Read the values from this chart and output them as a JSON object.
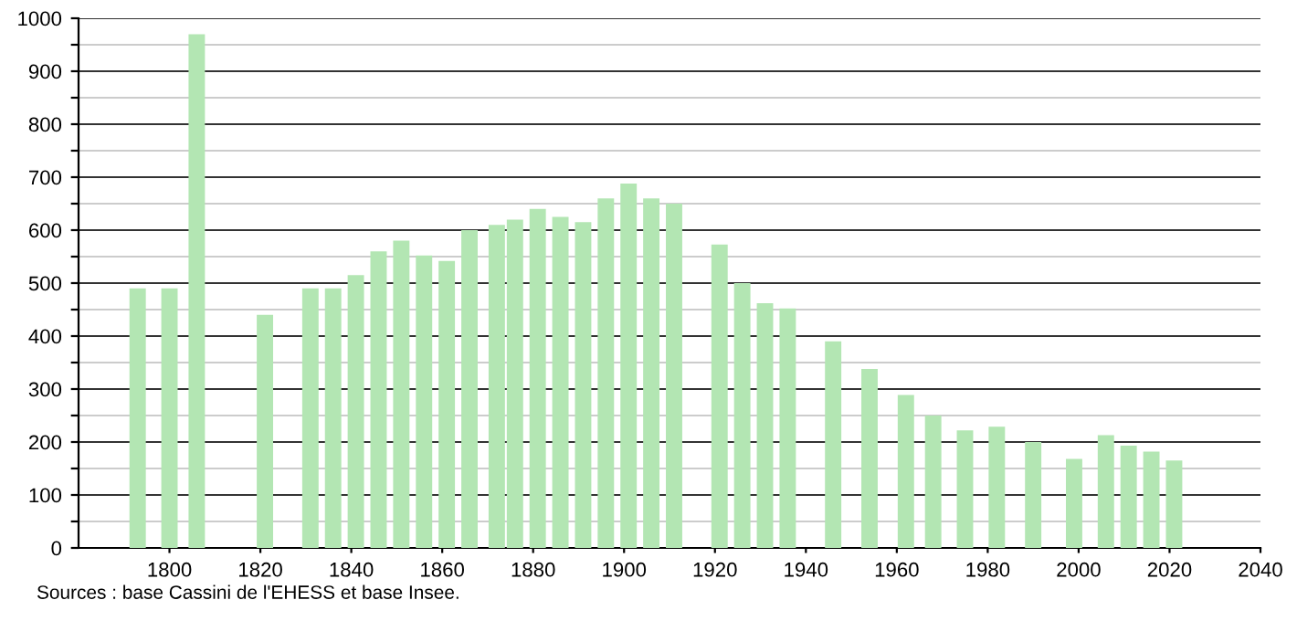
{
  "chart_data": {
    "type": "bar",
    "x": [
      1793,
      1800,
      1806,
      1821,
      1831,
      1836,
      1841,
      1846,
      1851,
      1856,
      1861,
      1866,
      1872,
      1876,
      1881,
      1886,
      1891,
      1896,
      1901,
      1906,
      1911,
      1921,
      1926,
      1931,
      1936,
      1946,
      1954,
      1962,
      1968,
      1975,
      1982,
      1990,
      1999,
      2006,
      2011,
      2016,
      2021
    ],
    "values": [
      490,
      490,
      970,
      440,
      490,
      490,
      515,
      560,
      580,
      552,
      542,
      600,
      610,
      620,
      640,
      625,
      615,
      660,
      688,
      660,
      650,
      573,
      500,
      462,
      452,
      390,
      338,
      289,
      250,
      222,
      229,
      200,
      168,
      213,
      193,
      182,
      165
    ],
    "color": "#b3e6b3",
    "xlim": [
      1780,
      2040
    ],
    "xticks": [
      1800,
      1820,
      1840,
      1860,
      1880,
      1900,
      1920,
      1940,
      1960,
      1980,
      2000,
      2020,
      2040
    ],
    "ylim": [
      0,
      1000
    ],
    "yticks": [
      0,
      {
        "value": 50,
        "label": null
      },
      100,
      {
        "value": 150,
        "label": null
      },
      200,
      {
        "value": 250,
        "label": null
      },
      300,
      {
        "value": 350,
        "label": null
      },
      400,
      {
        "value": 450,
        "label": null
      },
      500,
      {
        "value": 550,
        "label": null
      },
      600,
      {
        "value": 650,
        "label": null
      },
      700,
      {
        "value": 750,
        "label": null
      },
      800,
      {
        "value": 850,
        "label": null
      },
      900,
      {
        "value": 950,
        "label": null
      },
      1000
    ],
    "grid": "y",
    "annotations": [
      "Sources : base Cassini de l'EHESS et base Insee."
    ]
  }
}
